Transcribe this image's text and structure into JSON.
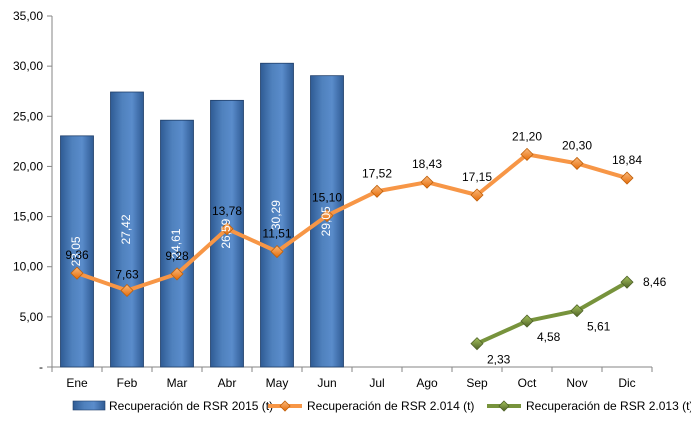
{
  "chart_data": {
    "type": "bar",
    "categories": [
      "Ene",
      "Feb",
      "Mar",
      "Abr",
      "May",
      "Jun",
      "Jul",
      "Ago",
      "Sep",
      "Oct",
      "Nov",
      "Dic"
    ],
    "ylim": [
      0,
      35
    ],
    "yticks": [
      "-",
      "5,00",
      "10,00",
      "15,00",
      "20,00",
      "25,00",
      "30,00",
      "35,00"
    ],
    "grid": false,
    "legend_position": "bottom",
    "series": [
      {
        "name": "Recuperación de RSR 2015 (t)",
        "type": "bar",
        "color": "#4F81BD",
        "values": [
          23.05,
          27.42,
          24.61,
          26.59,
          30.29,
          29.05,
          null,
          null,
          null,
          null,
          null,
          null
        ],
        "labels": [
          "23,05",
          "27,42",
          "24,61",
          "26,59",
          "30,29",
          "29,05",
          null,
          null,
          null,
          null,
          null,
          null
        ]
      },
      {
        "name": "Recuperación de RSR 2.014 (t)",
        "type": "line",
        "color": "#F79646",
        "values": [
          9.36,
          7.63,
          9.28,
          13.78,
          11.51,
          15.1,
          17.52,
          18.43,
          17.15,
          21.2,
          20.3,
          18.84
        ],
        "labels": [
          "9,36",
          "7,63",
          "9,28",
          "13,78",
          "11,51",
          "15,10",
          "17,52",
          "18,43",
          "17,15",
          "21,20",
          "20,30",
          "18,84"
        ]
      },
      {
        "name": "Recuperación de RSR 2.013 (t)",
        "type": "line",
        "color": "#77933C",
        "values": [
          null,
          null,
          null,
          null,
          null,
          null,
          null,
          null,
          2.33,
          4.58,
          5.61,
          8.46
        ],
        "labels": [
          null,
          null,
          null,
          null,
          null,
          null,
          null,
          null,
          "2,33",
          "4,58",
          "5,61",
          "8,46"
        ]
      }
    ]
  }
}
